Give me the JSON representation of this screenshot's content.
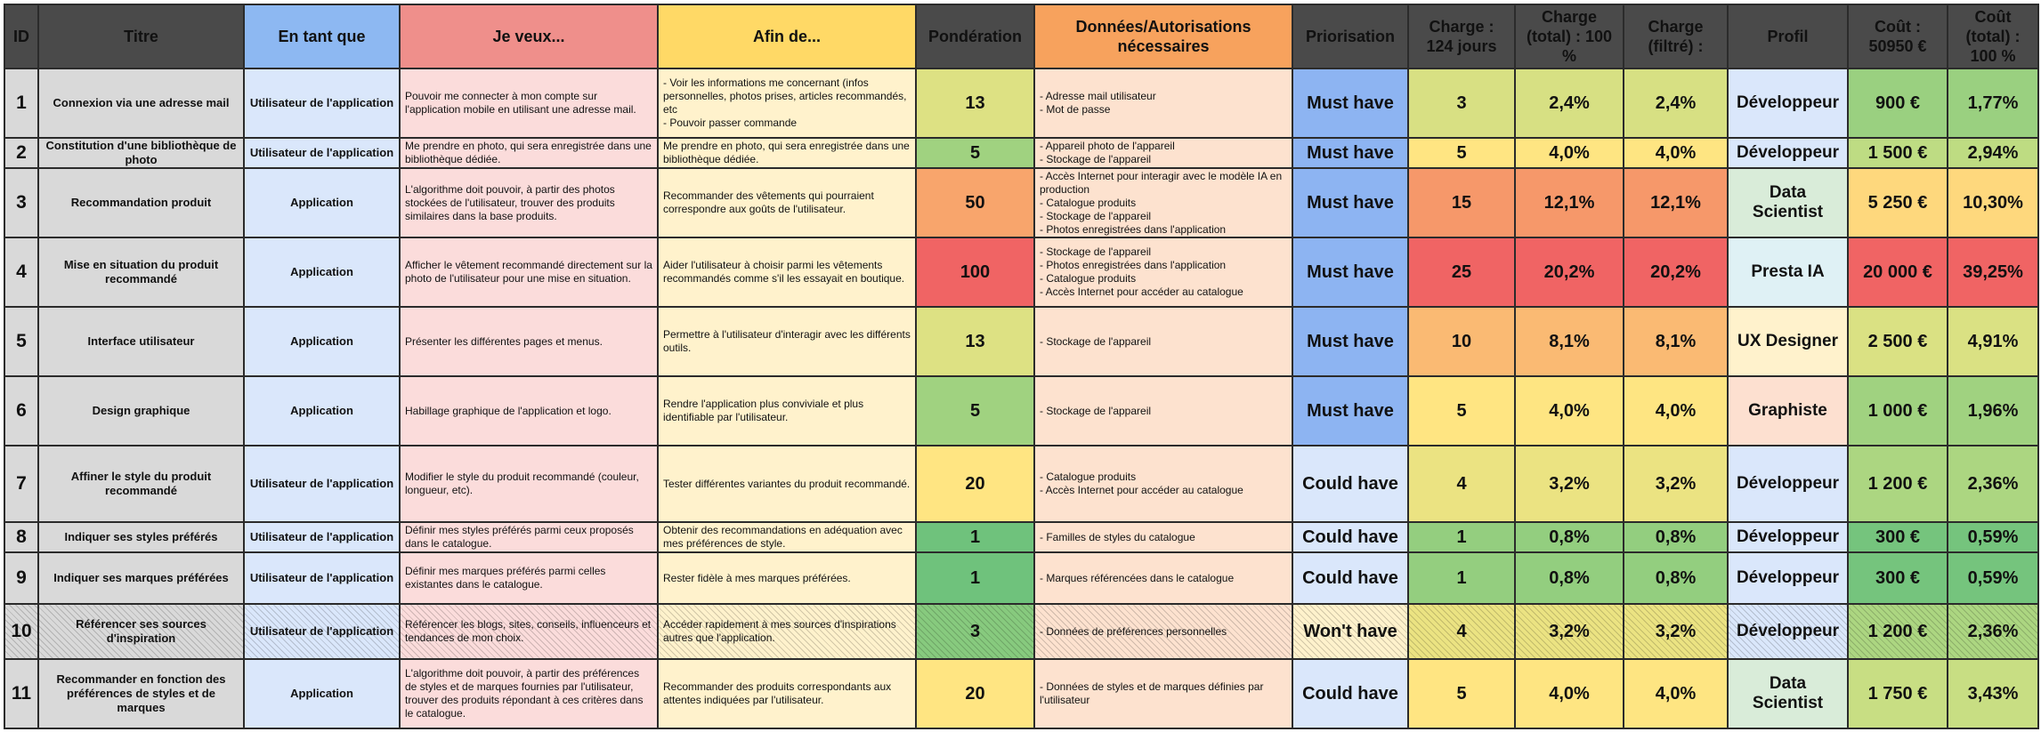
{
  "headers": {
    "id": "ID",
    "titre": "Titre",
    "en_tant_que": "En tant que",
    "je_veux": "Je veux...",
    "afin_de": "Afin de...",
    "ponderation": "Pondération",
    "donnees": "Données/Autorisations nécessaires",
    "priorisation": "Priorisation",
    "charge": "Charge : 124 jours",
    "charge_total": "Charge (total) : 100 %",
    "charge_filtre": "Charge (filtré) :",
    "profil": "Profil",
    "cout": "Coût : 50950 €",
    "cout_total": "Coût (total) : 100 %"
  },
  "colors": {
    "header_dark": "#4a4a4a",
    "must_have": "#8db4f2",
    "could_have": "#dae7fb",
    "wont_have": "#fff2cc"
  },
  "rows": [
    {
      "id": "1",
      "titre": "Connexion via une adresse mail",
      "en_tant_que": "Utilisateur de l'application",
      "je_veux": "Pouvoir me connecter à mon compte sur l'application mobile en utilisant une adresse mail.",
      "afin_de": [
        "- Voir les informations me concernant (infos personnelles, photos prises, articles recommandés, etc",
        "- Pouvoir passer commande"
      ],
      "ponderation": "13",
      "donnees": [
        "- Adresse mail utilisateur",
        "- Mot de passe"
      ],
      "priorisation": "Must have",
      "charge": "3",
      "charge_total": "2,4%",
      "charge_filtre": "2,4%",
      "profil": "Développeur",
      "cout": "900 €",
      "cout_total": "1,77%"
    },
    {
      "id": "2",
      "titre": "Constitution d'une bibliothèque de photo",
      "en_tant_que": "Utilisateur de l'application",
      "je_veux": "Me prendre en photo, qui sera enregistrée dans une bibliothèque dédiée.",
      "afin_de": [
        "Me prendre en photo, qui sera enregistrée dans une bibliothèque dédiée."
      ],
      "ponderation": "5",
      "donnees": [
        "- Appareil photo de l'appareil",
        "- Stockage de l'appareil"
      ],
      "priorisation": "Must have",
      "charge": "5",
      "charge_total": "4,0%",
      "charge_filtre": "4,0%",
      "profil": "Développeur",
      "cout": "1 500 €",
      "cout_total": "2,94%"
    },
    {
      "id": "3",
      "titre": "Recommandation produit",
      "en_tant_que": "Application",
      "je_veux": "L'algorithme doit pouvoir, à partir des photos stockées de l'utilisateur, trouver des produits similaires dans la base produits.",
      "afin_de": [
        "Recommander des vêtements qui pourraient correspondre aux goûts de l'utilisateur."
      ],
      "ponderation": "50",
      "donnees": [
        "- Accès Internet pour interagir avec le modèle IA en production",
        "- Catalogue produits",
        "- Stockage de l'appareil",
        "- Photos enregistrées dans l'application"
      ],
      "priorisation": "Must have",
      "charge": "15",
      "charge_total": "12,1%",
      "charge_filtre": "12,1%",
      "profil": "Data Scientist",
      "cout": "5 250 €",
      "cout_total": "10,30%"
    },
    {
      "id": "4",
      "titre": "Mise en situation du produit recommandé",
      "en_tant_que": "Application",
      "je_veux": "Afficher le vêtement recommandé directement sur la photo de l'utilisateur pour une mise en situation.",
      "afin_de": [
        "Aider l'utilisateur à choisir parmi les vêtements recommandés comme s'il les essayait en boutique."
      ],
      "ponderation": "100",
      "donnees": [
        "- Stockage de l'appareil",
        "- Photos enregistrées dans l'application",
        "- Catalogue produits",
        "- Accès Internet pour accéder au catalogue"
      ],
      "priorisation": "Must have",
      "charge": "25",
      "charge_total": "20,2%",
      "charge_filtre": "20,2%",
      "profil": "Presta IA",
      "cout": "20 000 €",
      "cout_total": "39,25%"
    },
    {
      "id": "5",
      "titre": "Interface utilisateur",
      "en_tant_que": "Application",
      "je_veux": "Présenter les différentes pages et menus.",
      "afin_de": [
        "Permettre à l'utilisateur d'interagir avec les différents outils."
      ],
      "ponderation": "13",
      "donnees": [
        "- Stockage de l'appareil"
      ],
      "priorisation": "Must have",
      "charge": "10",
      "charge_total": "8,1%",
      "charge_filtre": "8,1%",
      "profil": "UX Designer",
      "cout": "2 500 €",
      "cout_total": "4,91%"
    },
    {
      "id": "6",
      "titre": "Design graphique",
      "en_tant_que": "Application",
      "je_veux": "Habillage graphique de l'application et logo.",
      "afin_de": [
        "Rendre l'application plus conviviale et plus identifiable par l'utilisateur."
      ],
      "ponderation": "5",
      "donnees": [
        "- Stockage de l'appareil"
      ],
      "priorisation": "Must have",
      "charge": "5",
      "charge_total": "4,0%",
      "charge_filtre": "4,0%",
      "profil": "Graphiste",
      "cout": "1 000 €",
      "cout_total": "1,96%"
    },
    {
      "id": "7",
      "titre": "Affiner le style du produit recommandé",
      "en_tant_que": "Utilisateur de l'application",
      "je_veux": "Modifier le style du produit recommandé (couleur, longueur, etc).",
      "afin_de": [
        "Tester différentes variantes du produit recommandé."
      ],
      "ponderation": "20",
      "donnees": [
        "- Catalogue produits",
        "- Accès Internet pour accéder au catalogue"
      ],
      "priorisation": "Could have",
      "charge": "4",
      "charge_total": "3,2%",
      "charge_filtre": "3,2%",
      "profil": "Développeur",
      "cout": "1 200 €",
      "cout_total": "2,36%"
    },
    {
      "id": "8",
      "titre": "Indiquer ses styles préférés",
      "en_tant_que": "Utilisateur de l'application",
      "je_veux": "Définir mes styles préférés parmi ceux proposés dans le catalogue.",
      "afin_de": [
        "Obtenir des recommandations en adéquation avec mes préférences de style."
      ],
      "ponderation": "1",
      "donnees": [
        "- Familles de styles du catalogue"
      ],
      "priorisation": "Could have",
      "charge": "1",
      "charge_total": "0,8%",
      "charge_filtre": "0,8%",
      "profil": "Développeur",
      "cout": "300 €",
      "cout_total": "0,59%"
    },
    {
      "id": "9",
      "titre": "Indiquer ses marques préférées",
      "en_tant_que": "Utilisateur de l'application",
      "je_veux": "Définir mes marques préférés parmi celles existantes dans le catalogue.",
      "afin_de": [
        "Rester fidèle à mes marques préférées."
      ],
      "ponderation": "1",
      "donnees": [
        "- Marques référencées dans le catalogue"
      ],
      "priorisation": "Could have",
      "charge": "1",
      "charge_total": "0,8%",
      "charge_filtre": "0,8%",
      "profil": "Développeur",
      "cout": "300 €",
      "cout_total": "0,59%"
    },
    {
      "id": "10",
      "titre": "Référencer ses sources d'inspiration",
      "en_tant_que": "Utilisateur de l'application",
      "je_veux": "Référencer les blogs, sites, conseils, influenceurs et tendances de mon choix.",
      "afin_de": [
        "Accéder rapidement à mes sources d'inspirations autres que l'application."
      ],
      "ponderation": "3",
      "donnees": [
        "- Données de préférences personnelles"
      ],
      "priorisation": "Won't have",
      "charge": "4",
      "charge_total": "3,2%",
      "charge_filtre": "3,2%",
      "profil": "Développeur",
      "cout": "1 200 €",
      "cout_total": "2,36%"
    },
    {
      "id": "11",
      "titre": "Recommander en fonction des préférences de styles et de marques",
      "en_tant_que": "Application",
      "je_veux": "L'algorithme doit pouvoir, à partir des préférences de styles et de marques fournies par l'utilisateur, trouver des produits répondant à ces critères dans le catalogue.",
      "afin_de": [
        "Recommander des produits correspondants aux attentes indiquées par l'utilisateur."
      ],
      "ponderation": "20",
      "donnees": [
        "- Données de styles et de marques définies par l'utilisateur"
      ],
      "priorisation": "Could have",
      "charge": "5",
      "charge_total": "4,0%",
      "charge_filtre": "4,0%",
      "profil": "Data Scientist",
      "cout": "1 750 €",
      "cout_total": "3,43%"
    }
  ]
}
